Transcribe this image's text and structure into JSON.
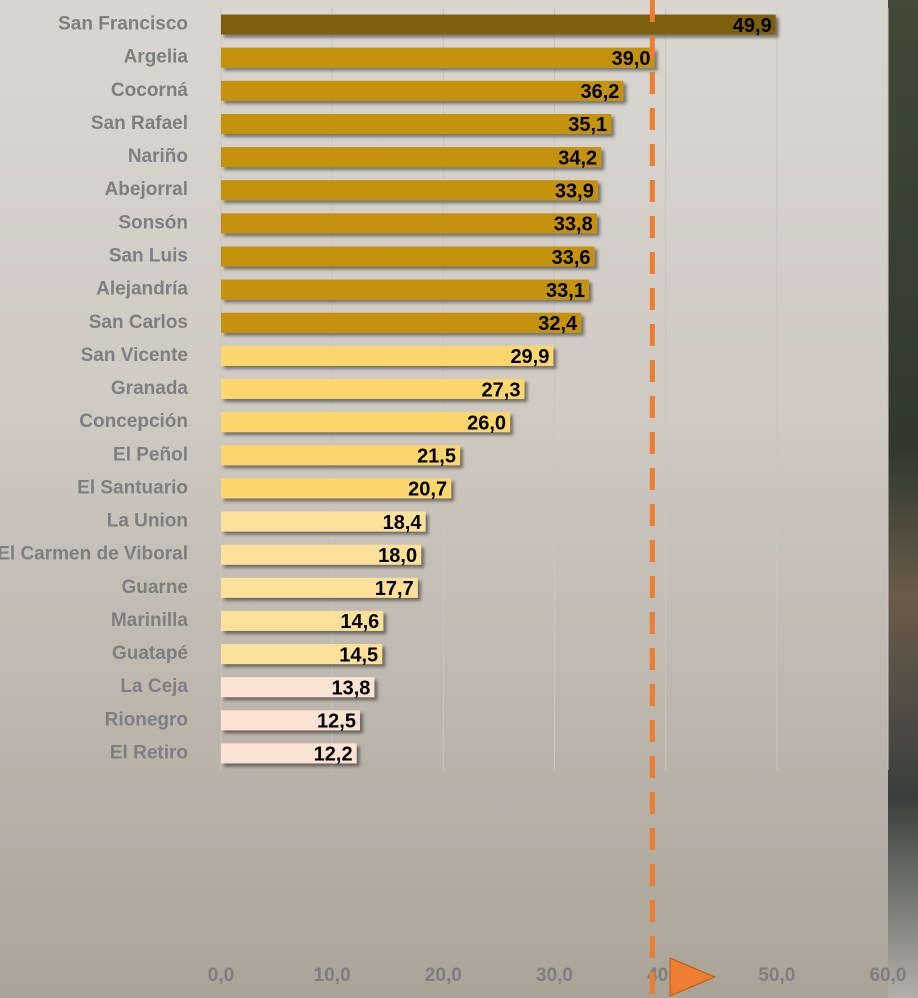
{
  "chart_data": {
    "type": "barh",
    "categories": [
      "San Francisco",
      "Argelia",
      "Cocorná",
      "San Rafael",
      "Nariño",
      "Abejorral",
      "Sonsón",
      "San Luis",
      "Alejandría",
      "San Carlos",
      "San Vicente",
      "Granada",
      "Concepción",
      "El Peñol",
      "El Santuario",
      "La Union",
      "El Carmen de Viboral",
      "Guarne",
      "Marinilla",
      "Guatapé",
      "La Ceja",
      "Rionegro",
      "El Retiro"
    ],
    "values": [
      49.9,
      39.0,
      36.2,
      35.1,
      34.2,
      33.9,
      33.8,
      33.6,
      33.1,
      32.4,
      29.9,
      27.3,
      26.0,
      21.5,
      20.7,
      18.4,
      18.0,
      17.7,
      14.6,
      14.5,
      13.8,
      12.5,
      12.2
    ],
    "value_labels": [
      "49,9",
      "39,0",
      "36,2",
      "35,1",
      "34,2",
      "33,9",
      "33,8",
      "33,6",
      "33,1",
      "32,4",
      "29,9",
      "27,3",
      "26,0",
      "21,5",
      "20,7",
      "18,4",
      "18,0",
      "17,7",
      "14,6",
      "14,5",
      "13,8",
      "12,5",
      "12,2"
    ],
    "colors": [
      "#7d5e10",
      "#c4920c",
      "#c4920c",
      "#c4920c",
      "#c4920c",
      "#c4920c",
      "#c4920c",
      "#c4920c",
      "#c4920c",
      "#c4920c",
      "#fdd66e",
      "#fdd66e",
      "#fdd66e",
      "#fdd66e",
      "#fdd66e",
      "#fde19a",
      "#fde19a",
      "#fde19a",
      "#fde19a",
      "#fde19a",
      "#fbe3d4",
      "#fbe3d4",
      "#fbe3d4"
    ],
    "xlim": [
      0,
      60
    ],
    "xticks": [
      {
        "value": 0,
        "label": "0,0"
      },
      {
        "value": 10,
        "label": "10,0"
      },
      {
        "value": 20,
        "label": "20,0"
      },
      {
        "value": 30,
        "label": "30,0"
      },
      {
        "value": 40,
        "label": "40,0"
      },
      {
        "value": 50,
        "label": "50,0"
      },
      {
        "value": 60,
        "label": "60,0"
      }
    ],
    "reference_line": 38.8,
    "reference_color": "#ed7d31",
    "grid": true
  }
}
